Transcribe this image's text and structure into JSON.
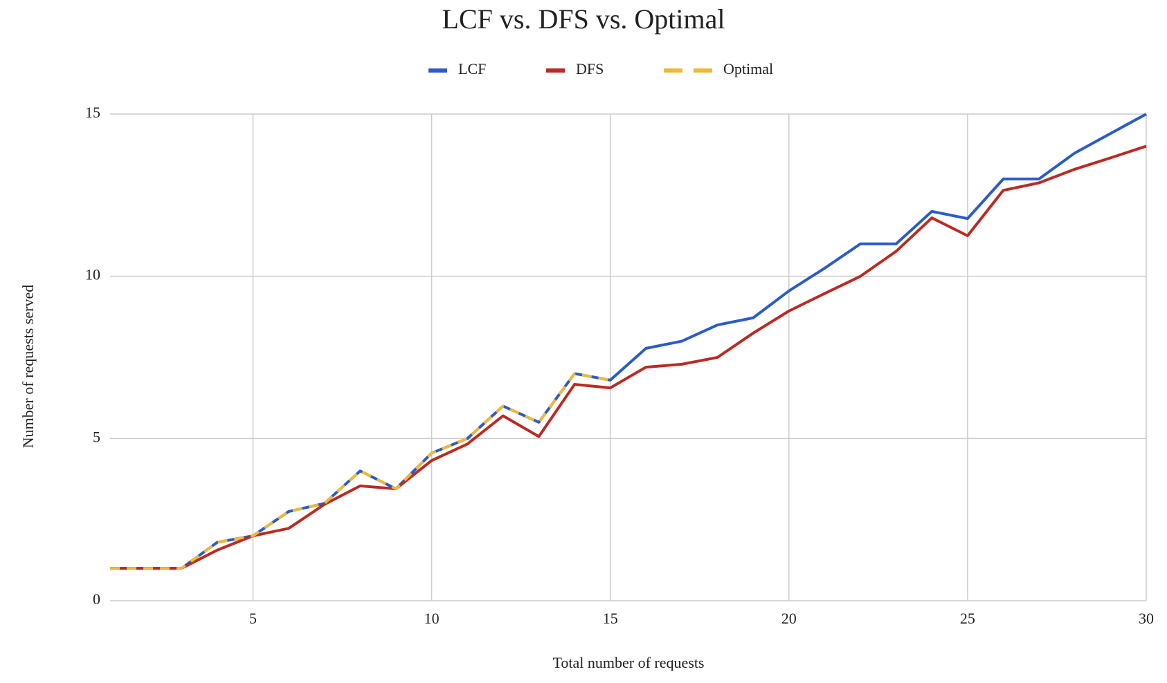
{
  "chart_data": {
    "type": "line",
    "title": "LCF vs. DFS vs. Optimal",
    "x_label": "Total number of requests",
    "y_label": "Number of requests served",
    "x": [
      1,
      2,
      3,
      4,
      5,
      6,
      7,
      8,
      9,
      10,
      11,
      12,
      13,
      14,
      15,
      16,
      17,
      18,
      19,
      20,
      21,
      22,
      23,
      24,
      25,
      26,
      27,
      28,
      29,
      30
    ],
    "series": [
      {
        "name": "LCF",
        "color": "#2a5bc9",
        "dashed": false,
        "values": [
          1,
          1,
          1,
          1.8,
          2,
          2.75,
          3,
          4,
          3.45,
          4.55,
          5,
          6,
          5.5,
          7,
          6.8,
          7.78,
          8,
          8.5,
          8.72,
          9.55,
          10.25,
          11,
          11,
          12,
          11.78,
          13,
          13,
          13.8,
          14.4,
          15
        ]
      },
      {
        "name": "DFS",
        "color": "#bb2a22",
        "dashed": false,
        "values": [
          1,
          1,
          1,
          1.56,
          2,
          2.23,
          2.97,
          3.54,
          3.45,
          4.32,
          4.83,
          5.7,
          5.06,
          6.67,
          6.56,
          7.2,
          7.29,
          7.5,
          8.25,
          8.93,
          9.47,
          10,
          10.77,
          11.8,
          11.25,
          12.65,
          12.88,
          13.3,
          13.65,
          14.01
        ]
      },
      {
        "name": "Optimal",
        "color": "#ecb93a",
        "dashed": true,
        "values": [
          1,
          1,
          1,
          1.8,
          2,
          2.75,
          3,
          4,
          3.45,
          4.55,
          5,
          6,
          5.5,
          7,
          6.8,
          null,
          null,
          null,
          null,
          null,
          null,
          null,
          null,
          null,
          null,
          null,
          null,
          null,
          null,
          null
        ]
      }
    ],
    "xlim": [
      1,
      30
    ],
    "xticks": [
      5,
      10,
      15,
      20,
      25,
      30
    ],
    "ylim": [
      0,
      15
    ],
    "yticks": [
      0,
      5,
      10,
      15
    ],
    "grid": true,
    "legend": "top"
  }
}
